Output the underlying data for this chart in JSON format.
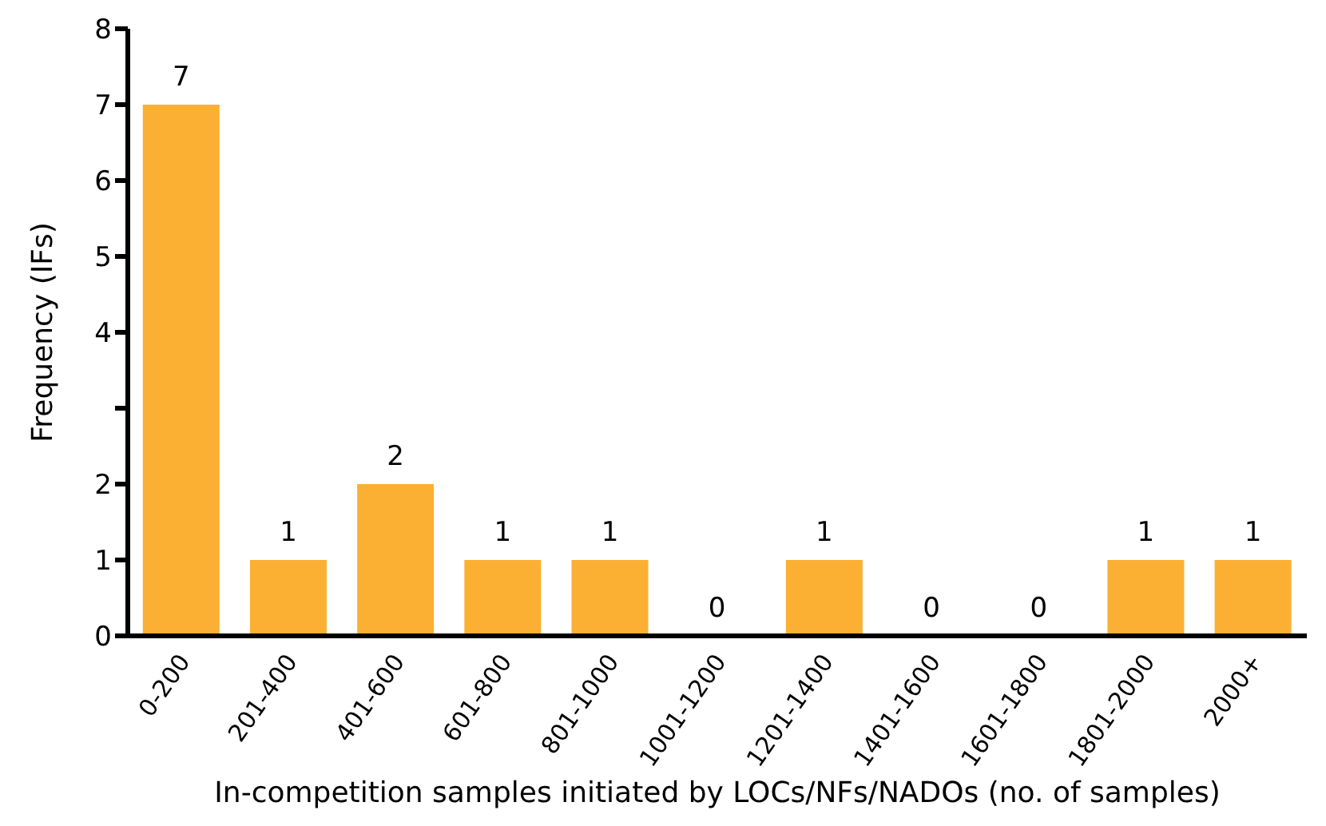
{
  "chart_data": {
    "type": "bar",
    "xlabel": "In-competition samples initiated by LOCs/NFs/NADOs (no. of samples)",
    "ylabel": "Frequency (IFs)",
    "categories": [
      "0-200",
      "201-400",
      "401-600",
      "601-800",
      "801-1000",
      "1001-1200",
      "1201-1400",
      "1401-1600",
      "1601-1800",
      "1801-2000",
      "2000+"
    ],
    "values": [
      7,
      1,
      2,
      1,
      1,
      0,
      1,
      0,
      0,
      1,
      1
    ],
    "color": "#fbb034",
    "ylim": [
      0,
      8
    ],
    "yticks": [
      0,
      1,
      2,
      {
        "value": 3,
        "label": null
      },
      4,
      5,
      6,
      7,
      8
    ],
    "data_labels": true,
    "grid": false,
    "legend": false
  }
}
